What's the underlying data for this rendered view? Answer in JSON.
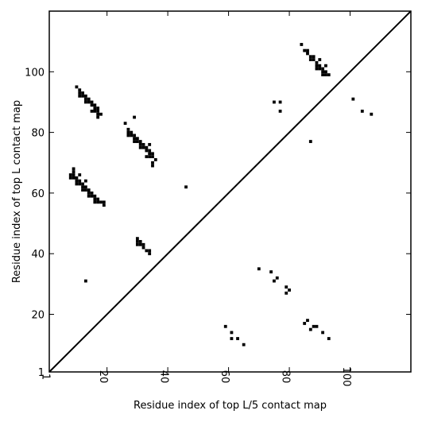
{
  "chart_data": {
    "type": "scatter",
    "xlabel": "Residue index of top L/5 contact map",
    "ylabel": "Residue index of top L contact map",
    "xlim": [
      1,
      120
    ],
    "ylim": [
      1,
      120
    ],
    "x_ticks": [
      1,
      20,
      40,
      60,
      80,
      100
    ],
    "y_ticks": [
      1,
      20,
      40,
      60,
      80,
      100
    ],
    "x_tick_labels": [
      "1",
      "20",
      "40",
      "60",
      "80",
      "100"
    ],
    "y_tick_labels": [
      "1",
      "20",
      "40",
      "60",
      "80",
      "100"
    ],
    "diagonal": true,
    "marker_color": "#000000",
    "series": [
      {
        "points": [
          [
            10,
            95
          ],
          [
            11,
            94
          ],
          [
            11,
            93
          ],
          [
            11,
            92
          ],
          [
            12,
            93
          ],
          [
            12,
            92
          ],
          [
            13,
            92
          ],
          [
            13,
            91
          ],
          [
            13,
            90
          ],
          [
            14,
            91
          ],
          [
            14,
            90
          ],
          [
            15,
            90
          ],
          [
            15,
            89
          ],
          [
            16,
            89
          ],
          [
            16,
            88
          ],
          [
            16,
            87
          ],
          [
            17,
            88
          ],
          [
            17,
            87
          ],
          [
            17,
            86
          ],
          [
            17,
            85
          ],
          [
            18,
            86
          ],
          [
            15,
            87
          ],
          [
            26,
            83
          ],
          [
            27,
            81
          ],
          [
            27,
            80
          ],
          [
            27,
            79
          ],
          [
            28,
            80
          ],
          [
            28,
            79
          ],
          [
            29,
            85
          ],
          [
            29,
            79
          ],
          [
            29,
            78
          ],
          [
            29,
            77
          ],
          [
            30,
            78
          ],
          [
            30,
            77
          ],
          [
            31,
            77
          ],
          [
            31,
            76
          ],
          [
            31,
            75
          ],
          [
            32,
            76
          ],
          [
            32,
            75
          ],
          [
            33,
            75
          ],
          [
            33,
            74
          ],
          [
            33,
            72
          ],
          [
            34,
            76
          ],
          [
            34,
            74
          ],
          [
            34,
            73
          ],
          [
            34,
            72
          ],
          [
            35,
            73
          ],
          [
            35,
            72
          ],
          [
            35,
            70
          ],
          [
            35,
            69
          ],
          [
            36,
            71
          ],
          [
            8,
            66
          ],
          [
            8,
            65
          ],
          [
            9,
            68
          ],
          [
            9,
            67
          ],
          [
            9,
            66
          ],
          [
            9,
            65
          ],
          [
            10,
            65
          ],
          [
            10,
            64
          ],
          [
            10,
            63
          ],
          [
            11,
            66
          ],
          [
            11,
            64
          ],
          [
            11,
            63
          ],
          [
            12,
            63
          ],
          [
            12,
            62
          ],
          [
            12,
            61
          ],
          [
            13,
            64
          ],
          [
            13,
            62
          ],
          [
            13,
            61
          ],
          [
            14,
            61
          ],
          [
            14,
            60
          ],
          [
            14,
            59
          ],
          [
            15,
            60
          ],
          [
            15,
            59
          ],
          [
            16,
            59
          ],
          [
            16,
            58
          ],
          [
            16,
            57
          ],
          [
            17,
            58
          ],
          [
            17,
            57
          ],
          [
            18,
            57
          ],
          [
            19,
            57
          ],
          [
            19,
            56
          ],
          [
            30,
            45
          ],
          [
            30,
            44
          ],
          [
            30,
            43
          ],
          [
            31,
            44
          ],
          [
            31,
            43
          ],
          [
            32,
            43
          ],
          [
            32,
            42
          ],
          [
            33,
            41
          ],
          [
            34,
            41
          ],
          [
            34,
            40
          ],
          [
            13,
            31
          ],
          [
            46,
            62
          ]
        ]
      },
      {
        "points": [
          [
            84,
            109
          ],
          [
            85,
            107
          ],
          [
            86,
            107
          ],
          [
            86,
            106
          ],
          [
            87,
            105
          ],
          [
            87,
            104
          ],
          [
            88,
            105
          ],
          [
            88,
            104
          ],
          [
            89,
            103
          ],
          [
            89,
            102
          ],
          [
            89,
            101
          ],
          [
            90,
            104
          ],
          [
            90,
            102
          ],
          [
            90,
            101
          ],
          [
            91,
            101
          ],
          [
            91,
            100
          ],
          [
            91,
            99
          ],
          [
            92,
            102
          ],
          [
            92,
            100
          ],
          [
            92,
            99
          ],
          [
            93,
            99
          ],
          [
            75,
            90
          ],
          [
            77,
            90
          ],
          [
            77,
            87
          ],
          [
            87,
            77
          ],
          [
            101,
            91
          ],
          [
            104,
            87
          ],
          [
            107,
            86
          ],
          [
            70,
            35
          ],
          [
            74,
            34
          ],
          [
            75,
            31
          ],
          [
            76,
            32
          ],
          [
            79,
            29
          ],
          [
            79,
            27
          ],
          [
            80,
            28
          ],
          [
            59,
            16
          ],
          [
            61,
            14
          ],
          [
            61,
            12
          ],
          [
            63,
            12
          ],
          [
            65,
            10
          ],
          [
            85,
            17
          ],
          [
            86,
            18
          ],
          [
            87,
            15
          ],
          [
            88,
            16
          ],
          [
            89,
            16
          ],
          [
            91,
            14
          ],
          [
            93,
            12
          ]
        ]
      }
    ]
  }
}
